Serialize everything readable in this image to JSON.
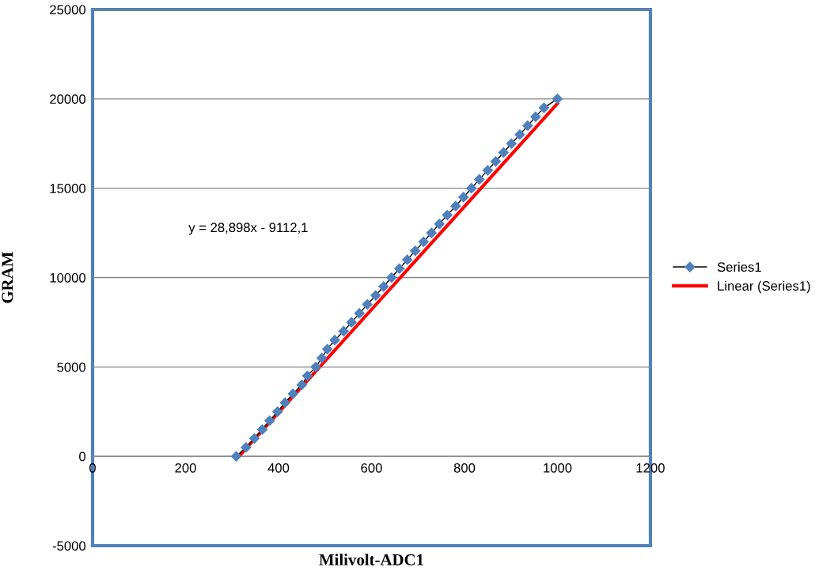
{
  "chart_data": {
    "type": "line",
    "xlabel": "Milivolt-ADC1",
    "ylabel": "GRAM",
    "xlim": [
      0,
      1200
    ],
    "xticks": [
      0,
      200,
      400,
      600,
      800,
      1000,
      1200
    ],
    "ylim": [
      -5000,
      25000
    ],
    "yticks": [
      -5000,
      0,
      5000,
      10000,
      15000,
      20000,
      25000
    ],
    "grid": "y",
    "legend": "right",
    "marker": "diamond",
    "annotations": [
      "y = 28,898x - 9112,1"
    ],
    "series": [
      {
        "name": "Series1",
        "color": "#4f81bd",
        "x": [
          309,
          330,
          348,
          365,
          381,
          398,
          414,
          431,
          450,
          462,
          480,
          493,
          505,
          521,
          540,
          557,
          574,
          591,
          609,
          626,
          643,
          660,
          677,
          694,
          712,
          729,
          746,
          763,
          781,
          798,
          815,
          832,
          850,
          867,
          884,
          901,
          919,
          936,
          953,
          971,
          1000
        ],
        "values": [
          0,
          500,
          1000,
          1500,
          2000,
          2500,
          3000,
          3500,
          4000,
          4500,
          5000,
          5500,
          6000,
          6500,
          7000,
          7500,
          8000,
          8500,
          9000,
          9500,
          10000,
          10500,
          11000,
          11500,
          12000,
          12500,
          13000,
          13500,
          14000,
          14500,
          15000,
          15500,
          16000,
          16500,
          17000,
          17500,
          18000,
          18500,
          19000,
          19500,
          20000
        ]
      },
      {
        "name": "Linear (Series1)",
        "color": "#ff0000",
        "marker": "none",
        "x": [
          315,
          1000
        ],
        "values": [
          0,
          19740
        ]
      }
    ]
  }
}
